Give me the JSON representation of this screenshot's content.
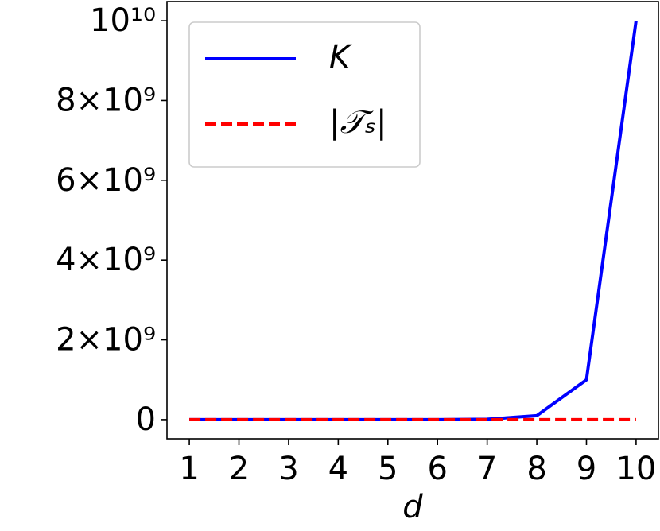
{
  "chart_data": {
    "type": "line",
    "x": [
      1,
      2,
      3,
      4,
      5,
      6,
      7,
      8,
      9,
      10
    ],
    "x_label": "d",
    "series": [
      {
        "name": "K",
        "color": "#0000ff",
        "dash": "solid",
        "values": [
          10,
          100,
          1000,
          10000,
          100000,
          1000000,
          10000000,
          100000000,
          1000000000,
          10000000000
        ]
      },
      {
        "name": "|𝒯ₛ|",
        "color": "#ff0000",
        "dash": "dashed",
        "values": [
          0,
          0,
          0,
          0,
          0,
          0,
          0,
          0,
          0,
          0
        ]
      }
    ],
    "xlim": [
      0.55,
      10.45
    ],
    "xticks": [
      1,
      2,
      3,
      4,
      5,
      6,
      7,
      8,
      9,
      10
    ],
    "ylim": [
      -480000000,
      10480000000
    ],
    "yticks": [
      0,
      {
        "value": 2000000000,
        "label": "2×10⁹"
      },
      {
        "value": 4000000000,
        "label": "4×10⁹"
      },
      {
        "value": 6000000000,
        "label": "6×10⁹"
      },
      {
        "value": 8000000000,
        "label": "8×10⁹"
      },
      {
        "value": 10000000000,
        "label": "10¹⁰"
      }
    ],
    "legend": "upper left",
    "grid": false
  }
}
